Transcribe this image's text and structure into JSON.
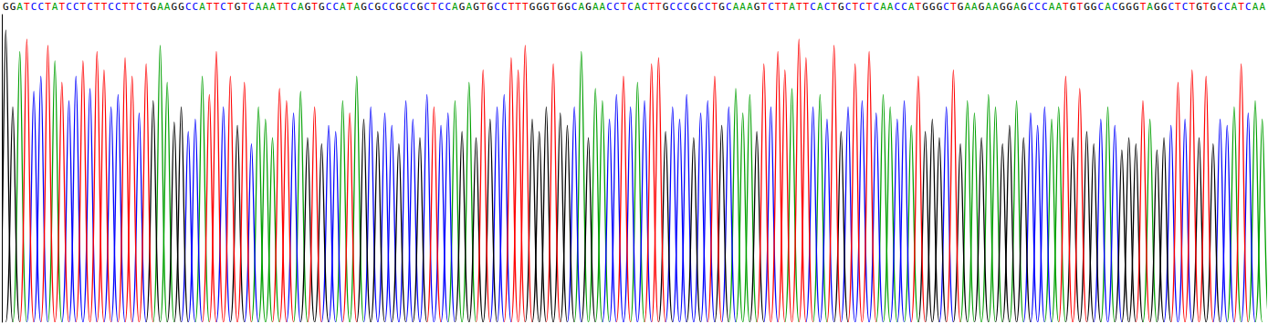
{
  "chart_data": {
    "type": "chromatogram",
    "categories": [
      "G",
      "G",
      "A",
      "T",
      "C",
      "C",
      "T",
      "A",
      "T",
      "C",
      "C",
      "T",
      "C",
      "T",
      "T",
      "C",
      "C",
      "T",
      "T",
      "C",
      "T",
      "G",
      "A",
      "A",
      "G",
      "G",
      "C",
      "C",
      "A",
      "T",
      "T",
      "C",
      "T",
      "G",
      "T",
      "C",
      "A",
      "A",
      "A",
      "T",
      "T",
      "C",
      "A",
      "G",
      "T",
      "G",
      "C",
      "C",
      "A",
      "T",
      "A",
      "G",
      "C",
      "G",
      "C",
      "C",
      "G",
      "C",
      "C",
      "G",
      "C",
      "T",
      "C",
      "C",
      "A",
      "G",
      "A",
      "G",
      "T",
      "G",
      "C",
      "C",
      "T",
      "T",
      "T",
      "G",
      "G",
      "G",
      "T",
      "G",
      "G",
      "C",
      "A",
      "G",
      "A",
      "A",
      "C",
      "C",
      "T",
      "C",
      "A",
      "C",
      "T",
      "T",
      "G",
      "C",
      "C",
      "C",
      "G",
      "C",
      "C",
      "T",
      "G",
      "C",
      "A",
      "A",
      "A",
      "G",
      "T",
      "C",
      "T",
      "T",
      "A",
      "T",
      "T",
      "C",
      "A",
      "C",
      "T",
      "G",
      "C",
      "T",
      "C",
      "T",
      "C",
      "A",
      "A",
      "C",
      "C",
      "A",
      "T",
      "G",
      "G",
      "G",
      "C",
      "T",
      "G",
      "A",
      "A",
      "G",
      "A",
      "A",
      "G",
      "G",
      "A",
      "G",
      "C",
      "C",
      "C",
      "A",
      "A",
      "T",
      "G",
      "T",
      "G",
      "G",
      "C",
      "A",
      "C",
      "G",
      "G",
      "G",
      "T",
      "A",
      "G",
      "G",
      "C",
      "T",
      "C",
      "T",
      "G",
      "T",
      "G",
      "C",
      "C",
      "A",
      "T",
      "C",
      "A",
      "A"
    ],
    "series": [
      {
        "name": "A",
        "color": "#00a000",
        "values": [
          null,
          null,
          88,
          null,
          null,
          null,
          null,
          85,
          null,
          null,
          null,
          null,
          null,
          null,
          null,
          null,
          null,
          null,
          null,
          null,
          null,
          null,
          90,
          78,
          null,
          null,
          null,
          null,
          80,
          null,
          null,
          null,
          null,
          null,
          null,
          null,
          70,
          66,
          60,
          null,
          null,
          null,
          75,
          null,
          null,
          null,
          null,
          null,
          72,
          null,
          80,
          null,
          null,
          null,
          null,
          null,
          null,
          null,
          null,
          null,
          null,
          null,
          null,
          null,
          72,
          null,
          78,
          null,
          null,
          null,
          null,
          null,
          null,
          null,
          null,
          null,
          null,
          null,
          null,
          null,
          null,
          null,
          88,
          null,
          76,
          72,
          null,
          null,
          null,
          null,
          78,
          null,
          null,
          null,
          null,
          null,
          null,
          null,
          null,
          null,
          null,
          null,
          null,
          null,
          76,
          68,
          74,
          null,
          null,
          null,
          null,
          null,
          76,
          null,
          null,
          null,
          74,
          null,
          null,
          null,
          null,
          null,
          null,
          null,
          null,
          74,
          70,
          null,
          null,
          64,
          null,
          null,
          null,
          null,
          null,
          null,
          null,
          72,
          68,
          null,
          74,
          70,
          null,
          null,
          72,
          null,
          null,
          null,
          null,
          66,
          70,
          null,
          null,
          null,
          null,
          null,
          null,
          70,
          null,
          null,
          null,
          null,
          null,
          66,
          null,
          null,
          null,
          null,
          null,
          null,
          null,
          null,
          null,
          null,
          null,
          70,
          null,
          null,
          72,
          66
        ]
      },
      {
        "name": "C",
        "color": "#0000ff",
        "values": [
          null,
          null,
          null,
          null,
          75,
          80,
          null,
          null,
          null,
          72,
          80,
          null,
          76,
          null,
          null,
          70,
          74,
          null,
          null,
          68,
          null,
          null,
          null,
          null,
          null,
          null,
          62,
          66,
          null,
          null,
          null,
          70,
          null,
          null,
          null,
          58,
          null,
          null,
          null,
          null,
          null,
          68,
          null,
          null,
          null,
          null,
          64,
          62,
          null,
          null,
          null,
          null,
          70,
          null,
          68,
          64,
          null,
          72,
          66,
          null,
          74,
          null,
          64,
          68,
          null,
          null,
          null,
          null,
          null,
          null,
          70,
          74,
          null,
          null,
          null,
          null,
          null,
          null,
          null,
          null,
          null,
          70,
          null,
          null,
          null,
          null,
          66,
          74,
          null,
          70,
          null,
          72,
          null,
          null,
          null,
          70,
          66,
          74,
          null,
          68,
          72,
          null,
          null,
          70,
          null,
          null,
          null,
          null,
          null,
          70,
          null,
          null,
          null,
          null,
          null,
          70,
          null,
          66,
          null,
          null,
          70,
          null,
          72,
          null,
          68,
          null,
          null,
          66,
          72,
          null,
          null,
          null,
          null,
          null,
          70,
          null,
          null,
          null,
          null,
          null,
          null,
          null,
          null,
          null,
          null,
          null,
          68,
          64,
          70,
          null,
          null,
          null,
          null,
          null,
          null,
          null,
          66,
          null,
          64,
          null,
          null,
          null,
          null,
          null,
          null,
          null,
          64,
          null,
          66,
          null,
          null,
          null,
          null,
          66,
          64,
          null,
          null,
          68,
          null,
          null
        ]
      },
      {
        "name": "G",
        "color": "#000000",
        "values": [
          95,
          70,
          null,
          null,
          null,
          null,
          null,
          null,
          null,
          null,
          null,
          null,
          null,
          null,
          null,
          null,
          null,
          null,
          null,
          null,
          null,
          72,
          null,
          null,
          65,
          70,
          null,
          null,
          null,
          null,
          null,
          null,
          null,
          64,
          null,
          null,
          null,
          null,
          null,
          null,
          null,
          null,
          null,
          60,
          null,
          58,
          null,
          null,
          null,
          null,
          null,
          66,
          null,
          62,
          null,
          null,
          58,
          null,
          null,
          60,
          null,
          null,
          null,
          null,
          null,
          62,
          null,
          60,
          null,
          66,
          null,
          null,
          null,
          null,
          null,
          66,
          62,
          70,
          null,
          68,
          64,
          null,
          null,
          60,
          null,
          null,
          null,
          null,
          null,
          null,
          null,
          null,
          null,
          null,
          62,
          null,
          null,
          null,
          60,
          null,
          null,
          null,
          64,
          null,
          null,
          null,
          null,
          62,
          null,
          null,
          null,
          null,
          null,
          null,
          null,
          null,
          null,
          null,
          null,
          62,
          null,
          null,
          null,
          null,
          null,
          null,
          null,
          null,
          null,
          null,
          null,
          62,
          66,
          60,
          null,
          null,
          58,
          null,
          null,
          60,
          null,
          null,
          58,
          64,
          null,
          60,
          null,
          null,
          null,
          null,
          null,
          null,
          60,
          null,
          62,
          58,
          null,
          null,
          null,
          56,
          60,
          58,
          null,
          null,
          56,
          60,
          null,
          null,
          null,
          null,
          60,
          null,
          58,
          null,
          null,
          null,
          null,
          null,
          null,
          null
        ]
      },
      {
        "name": "T",
        "color": "#ff0000",
        "values": [
          null,
          null,
          null,
          92,
          null,
          null,
          90,
          null,
          78,
          null,
          null,
          85,
          null,
          88,
          82,
          null,
          null,
          86,
          80,
          null,
          84,
          null,
          null,
          null,
          null,
          null,
          null,
          null,
          null,
          74,
          88,
          null,
          80,
          null,
          78,
          null,
          null,
          null,
          null,
          76,
          72,
          null,
          null,
          null,
          70,
          null,
          null,
          null,
          null,
          68,
          null,
          null,
          null,
          null,
          null,
          null,
          null,
          null,
          null,
          null,
          null,
          70,
          null,
          null,
          null,
          null,
          null,
          null,
          82,
          null,
          null,
          null,
          86,
          82,
          90,
          null,
          null,
          null,
          84,
          null,
          null,
          null,
          null,
          null,
          null,
          null,
          null,
          null,
          80,
          null,
          null,
          null,
          84,
          86,
          null,
          null,
          null,
          null,
          null,
          null,
          null,
          80,
          null,
          null,
          null,
          null,
          null,
          null,
          84,
          null,
          88,
          82,
          null,
          92,
          86,
          null,
          null,
          null,
          90,
          null,
          null,
          84,
          null,
          88,
          null,
          null,
          null,
          null,
          null,
          null,
          80,
          null,
          null,
          null,
          null,
          82,
          null,
          null,
          null,
          null,
          null,
          null,
          null,
          null,
          null,
          null,
          null,
          null,
          null,
          null,
          null,
          80,
          null,
          76,
          null,
          null,
          null,
          null,
          null,
          null,
          null,
          null,
          72,
          null,
          null,
          null,
          null,
          78,
          null,
          82,
          null,
          80,
          null,
          null,
          null,
          null,
          84,
          null,
          null,
          null
        ]
      }
    ],
    "ylim": [
      0,
      100
    ],
    "grid": false,
    "tick_labels": "x"
  }
}
